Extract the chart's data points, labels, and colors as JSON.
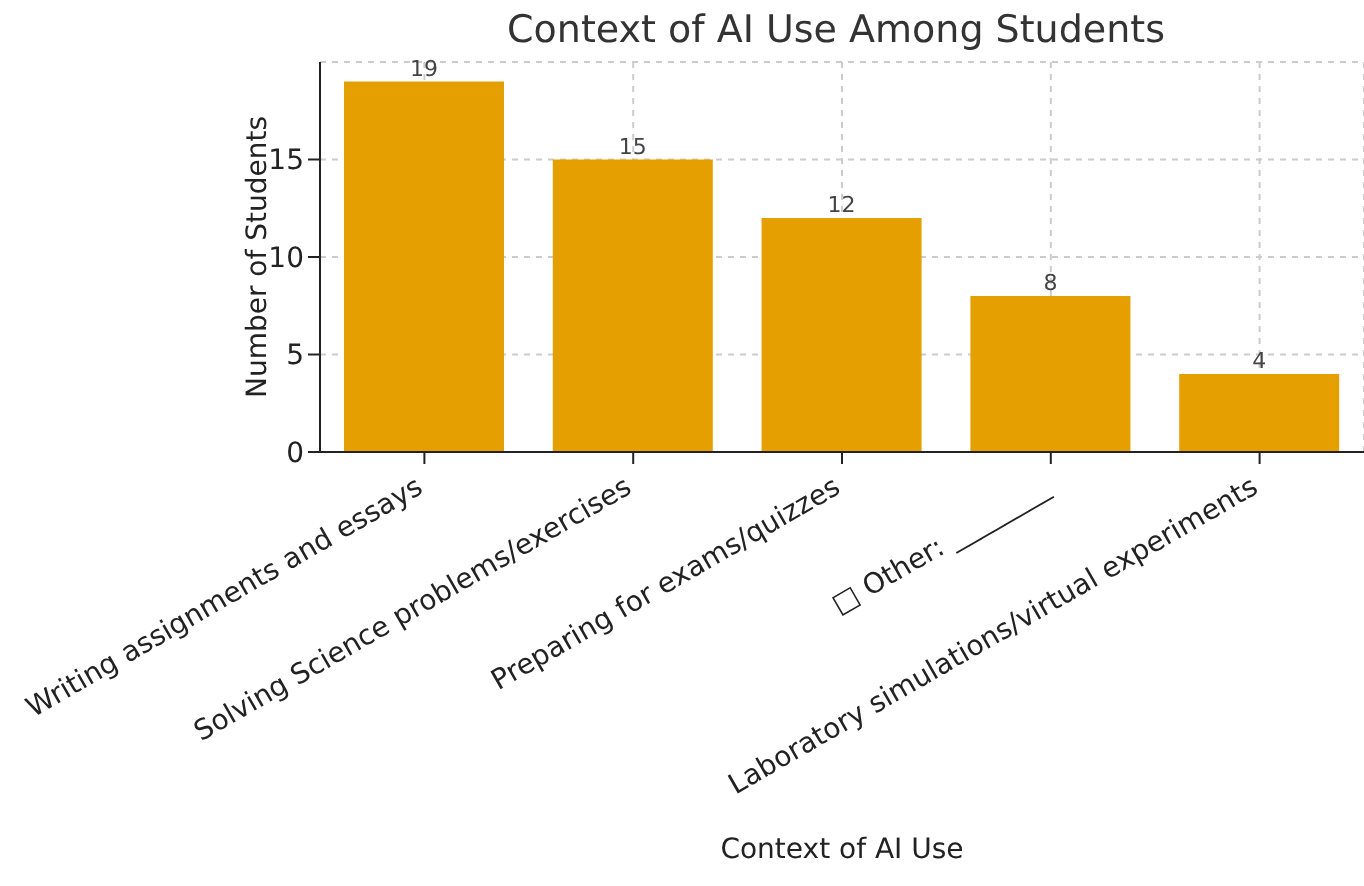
{
  "chart_data": {
    "type": "bar",
    "title": "Context of AI Use Among Students",
    "xlabel": "Context of AI Use",
    "ylabel": "Number of Students",
    "categories": [
      "Writing assignments and essays",
      "Solving Science problems/exercises",
      "Preparing for exams/quizzes",
      "□ Other: ________",
      "Laboratory simulations/virtual experiments"
    ],
    "values": [
      19,
      15,
      12,
      8,
      4
    ],
    "color": "#e69f00",
    "ylim": [
      0,
      20
    ],
    "yticks": [
      0,
      5,
      10,
      15
    ],
    "grid": true,
    "data_labels": true
  }
}
